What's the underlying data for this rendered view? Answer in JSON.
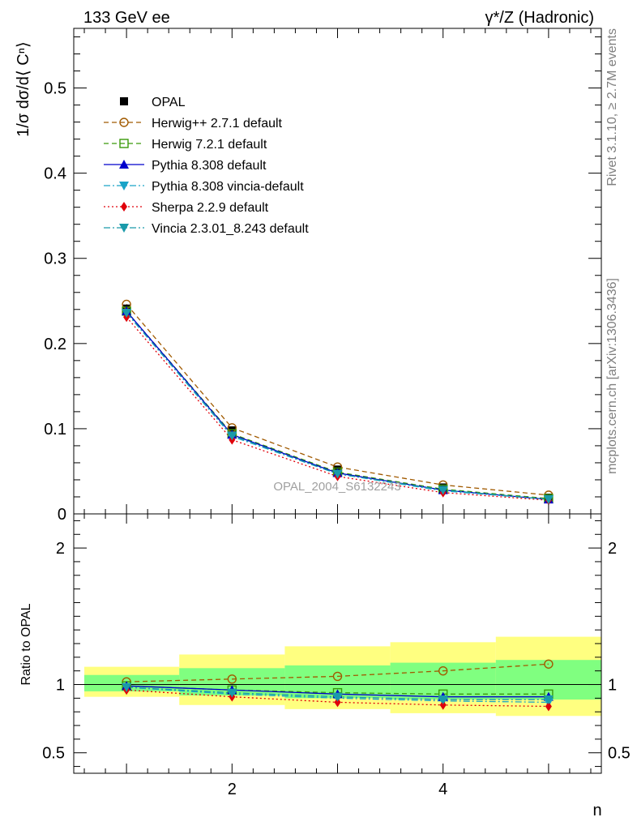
{
  "header": {
    "left": "133 GeV ee",
    "right": "γ*/Z (Hadronic)"
  },
  "side_labels": {
    "rivet": "Rivet 3.1.10, ≥ 2.7M events",
    "mcplots": "mcplots.cern.ch [arXiv:1306.3436]"
  },
  "watermark": "OPAL_2004_S6132243",
  "chart_data": [
    {
      "type": "line",
      "name": "main-panel",
      "ylabel": "1/σ dσ/d⟨ Cⁿ⟩",
      "xlabel": "",
      "xlim": [
        0.5,
        5.5
      ],
      "ylim": [
        0,
        0.57
      ],
      "yticks": [
        0,
        0.1,
        0.2,
        0.3,
        0.4,
        0.5
      ],
      "ytick_labels": [
        "0",
        "0.1",
        "0.2",
        "0.3",
        "0.4",
        "0.5"
      ],
      "x": [
        1,
        2,
        3,
        4,
        5
      ],
      "legend_position": "top-left",
      "series": [
        {
          "name": "OPAL",
          "color": "#000000",
          "marker": "square",
          "line": "none",
          "values": [
            0.241,
            0.098,
            0.052,
            0.031,
            0.019
          ]
        },
        {
          "name": "Herwig++ 2.7.1 default",
          "color": "#a15a00",
          "marker": "circle-open",
          "line": "dashed",
          "values": [
            0.246,
            0.101,
            0.055,
            0.034,
            0.022
          ]
        },
        {
          "name": "Herwig 7.2.1 default",
          "color": "#3a9a0a",
          "marker": "square-open",
          "line": "dashed",
          "values": [
            0.238,
            0.094,
            0.049,
            0.029,
            0.018
          ]
        },
        {
          "name": "Pythia 8.308 default",
          "color": "#0000cc",
          "marker": "triangle-up",
          "line": "solid",
          "values": [
            0.238,
            0.093,
            0.048,
            0.028,
            0.017
          ]
        },
        {
          "name": "Pythia 8.308 vincia-default",
          "color": "#1aa3c7",
          "marker": "triangle-down",
          "line": "dashdot",
          "values": [
            0.236,
            0.091,
            0.047,
            0.027,
            0.017
          ]
        },
        {
          "name": "Sherpa 2.2.9 default",
          "color": "#e0000a",
          "marker": "diamond",
          "line": "dotted",
          "values": [
            0.231,
            0.087,
            0.044,
            0.025,
            0.016
          ]
        },
        {
          "name": "Vincia 2.3.01_8.243 default",
          "color": "#1a9aaa",
          "marker": "triangle-down",
          "line": "dashdot",
          "values": [
            0.236,
            0.092,
            0.047,
            0.028,
            0.017
          ]
        }
      ]
    },
    {
      "type": "line",
      "name": "ratio-panel",
      "ylabel": "Ratio to OPAL",
      "xlabel": "n",
      "xlim": [
        0.5,
        5.5
      ],
      "ylim": [
        0.35,
        2.25
      ],
      "yticks": [
        0.5,
        1,
        2
      ],
      "ytick_labels": [
        "0.5",
        "1",
        "2"
      ],
      "xticks": [
        2,
        4
      ],
      "xtick_labels": [
        "2",
        "4"
      ],
      "x": [
        1,
        2,
        3,
        4,
        5
      ],
      "bands": {
        "x_edges": [
          [
            0.6,
            1.5
          ],
          [
            1.5,
            2.5
          ],
          [
            2.5,
            3.5
          ],
          [
            3.5,
            4.5
          ],
          [
            4.5,
            5.5
          ]
        ],
        "yellow_band": {
          "color": "#ffff80",
          "lo": [
            0.91,
            0.85,
            0.82,
            0.79,
            0.77
          ],
          "hi": [
            1.13,
            1.22,
            1.28,
            1.31,
            1.35
          ]
        },
        "green_band": {
          "color": "#80ff80",
          "lo": [
            0.95,
            0.92,
            0.9,
            0.89,
            0.89
          ],
          "hi": [
            1.07,
            1.12,
            1.14,
            1.16,
            1.18
          ]
        }
      },
      "series": [
        {
          "name": "Herwig++ 2.7.1 default",
          "values": [
            1.02,
            1.04,
            1.06,
            1.1,
            1.15
          ]
        },
        {
          "name": "Herwig 7.2.1 default",
          "values": [
            0.99,
            0.96,
            0.94,
            0.93,
            0.93
          ]
        },
        {
          "name": "Pythia 8.308 default",
          "values": [
            0.99,
            0.96,
            0.93,
            0.91,
            0.91
          ]
        },
        {
          "name": "Pythia 8.308 vincia-default",
          "values": [
            0.98,
            0.93,
            0.9,
            0.88,
            0.87
          ]
        },
        {
          "name": "Sherpa 2.2.9 default",
          "values": [
            0.96,
            0.91,
            0.87,
            0.85,
            0.84
          ]
        },
        {
          "name": "Vincia 2.3.01_8.243 default",
          "values": [
            0.98,
            0.94,
            0.91,
            0.89,
            0.89
          ]
        }
      ]
    }
  ]
}
